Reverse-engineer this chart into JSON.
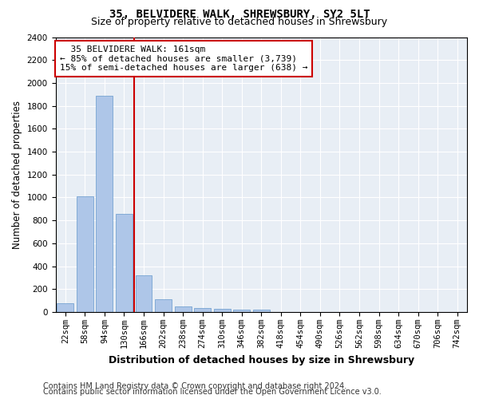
{
  "title1": "35, BELVIDERE WALK, SHREWSBURY, SY2 5LT",
  "title2": "Size of property relative to detached houses in Shrewsbury",
  "xlabel": "Distribution of detached houses by size in Shrewsbury",
  "ylabel": "Number of detached properties",
  "footer1": "Contains HM Land Registry data © Crown copyright and database right 2024.",
  "footer2": "Contains public sector information licensed under the Open Government Licence v3.0.",
  "annotation_line1": "  35 BELVIDERE WALK: 161sqm",
  "annotation_line2": "← 85% of detached houses are smaller (3,739)",
  "annotation_line3": "15% of semi-detached houses are larger (638) →",
  "categories": [
    "22sqm",
    "58sqm",
    "94sqm",
    "130sqm",
    "166sqm",
    "202sqm",
    "238sqm",
    "274sqm",
    "310sqm",
    "346sqm",
    "382sqm",
    "418sqm",
    "454sqm",
    "490sqm",
    "526sqm",
    "562sqm",
    "598sqm",
    "634sqm",
    "670sqm",
    "706sqm",
    "742sqm"
  ],
  "values": [
    80,
    1010,
    1890,
    860,
    320,
    115,
    50,
    35,
    25,
    20,
    20,
    0,
    0,
    0,
    0,
    0,
    0,
    0,
    0,
    0,
    0
  ],
  "bar_color": "#aec6e8",
  "bar_edge_color": "#6699cc",
  "vline_color": "#cc0000",
  "vline_index": 3.5,
  "background_color": "#e8eef5",
  "grid_color": "#ffffff",
  "ylim": [
    0,
    2400
  ],
  "yticks": [
    0,
    200,
    400,
    600,
    800,
    1000,
    1200,
    1400,
    1600,
    1800,
    2000,
    2200,
    2400
  ],
  "annotation_box_color": "#cc0000",
  "title_fontsize": 10,
  "subtitle_fontsize": 9,
  "axis_label_fontsize": 8.5,
  "tick_fontsize": 7.5,
  "annotation_fontsize": 8,
  "footer_fontsize": 7
}
